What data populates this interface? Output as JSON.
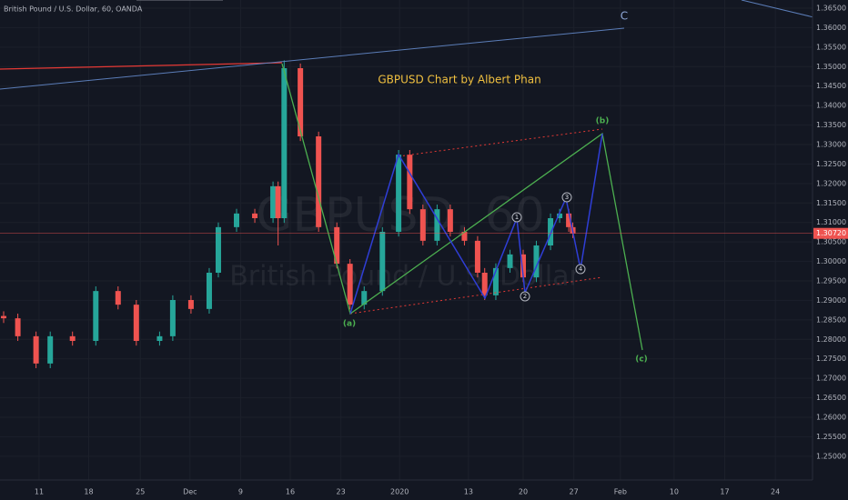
{
  "chart_data": {
    "type": "candlestick",
    "header": "British Pound / U.S. Dollar, 60, OANDA",
    "title": "GBPUSD Chart by Albert Phan",
    "watermark_symbol": "GBPUSD, 60",
    "watermark_name": "British Pound / U.S. Dollar",
    "wave_labels": [
      "(a)",
      "(b)",
      "(c)",
      "1",
      "2",
      "3",
      "4",
      "C"
    ],
    "up_color": "#26a69a",
    "down_color": "#ef5350",
    "grid": true,
    "x": [
      -3.5,
      -2.1,
      -0.3,
      1.1,
      3.3,
      5.6,
      7.8,
      9.6,
      11.9,
      13.2,
      15.0,
      16.8,
      17.7,
      19.5,
      21.3,
      23.1,
      23.6,
      24.2,
      25.8,
      27.6,
      29.4,
      30.7,
      32.1,
      33.9,
      35.5,
      36.6,
      37.9,
      39.3,
      40.6,
      42.0,
      43.3,
      44.0,
      45.1,
      46.5,
      47.8,
      49.1,
      50.5,
      51.4,
      52.3,
      52.7
    ],
    "open": [
      1.286,
      1.2854,
      1.2808,
      1.2738,
      1.2808,
      1.2796,
      1.2924,
      1.2889,
      1.2796,
      1.2808,
      1.2901,
      1.2878,
      1.2971,
      1.3088,
      1.3123,
      1.3111,
      1.3193,
      1.3111,
      1.3496,
      1.3321,
      1.3088,
      1.2994,
      1.2889,
      1.2924,
      1.3076,
      1.3274,
      1.3134,
      1.3053,
      1.3134,
      1.3076,
      1.3053,
      1.2971,
      1.2913,
      1.2983,
      1.3018,
      1.2959,
      1.3041,
      1.3111,
      1.3123,
      1.3088
    ],
    "high": [
      1.2872,
      1.2866,
      1.282,
      1.282,
      1.282,
      1.2936,
      1.2936,
      1.2901,
      1.282,
      1.2913,
      1.2913,
      1.2983,
      1.31,
      1.3135,
      1.3135,
      1.3205,
      1.3205,
      1.3516,
      1.3508,
      1.3333,
      1.31,
      1.3006,
      1.2936,
      1.3088,
      1.3286,
      1.3286,
      1.3146,
      1.3146,
      1.3146,
      1.3088,
      1.3065,
      1.2983,
      1.2995,
      1.303,
      1.303,
      1.3053,
      1.3123,
      1.3135,
      1.3135,
      1.31
    ],
    "low": [
      1.2842,
      1.2796,
      1.2726,
      1.2726,
      1.2784,
      1.2784,
      1.2877,
      1.2784,
      1.2784,
      1.2796,
      1.2866,
      1.2866,
      1.2959,
      1.3076,
      1.3099,
      1.3099,
      1.3041,
      1.3099,
      1.3309,
      1.3076,
      1.2982,
      1.2877,
      1.2877,
      1.2912,
      1.3064,
      1.3122,
      1.3041,
      1.3041,
      1.3064,
      1.3041,
      1.2959,
      1.2901,
      1.2901,
      1.2971,
      1.2947,
      1.2947,
      1.3029,
      1.3099,
      1.3076,
      1.306
    ],
    "close": [
      1.2854,
      1.2808,
      1.2738,
      1.2808,
      1.2796,
      1.2924,
      1.2889,
      1.2796,
      1.2808,
      1.2901,
      1.2878,
      1.2971,
      1.3088,
      1.3123,
      1.3111,
      1.3193,
      1.3111,
      1.3496,
      1.3321,
      1.3088,
      1.2994,
      1.2889,
      1.2924,
      1.3076,
      1.3274,
      1.3134,
      1.3053,
      1.3134,
      1.3076,
      1.3053,
      1.2971,
      1.2913,
      1.2983,
      1.3018,
      1.2959,
      1.3041,
      1.3111,
      1.3123,
      1.3088,
      1.3072
    ],
    "last_price": {
      "value": 1.3072,
      "label": "1.30720"
    },
    "xlim": [
      -3.86,
      76.37
    ],
    "ylim": [
      1.2439,
      1.3671
    ],
    "xticks": [
      {
        "value": 0,
        "label": "11"
      },
      {
        "value": 4.9,
        "label": "18"
      },
      {
        "value": 10.0,
        "label": "25"
      },
      {
        "value": 14.9,
        "label": "Dec"
      },
      {
        "value": 19.9,
        "label": "9"
      },
      {
        "value": 24.8,
        "label": "16"
      },
      {
        "value": 29.8,
        "label": "23"
      },
      {
        "value": 35.6,
        "label": "2020"
      },
      {
        "value": 42.4,
        "label": "13"
      },
      {
        "value": 47.8,
        "label": "20"
      },
      {
        "value": 52.8,
        "label": "27"
      },
      {
        "value": 57.4,
        "label": "Feb"
      },
      {
        "value": 62.7,
        "label": "10"
      },
      {
        "value": 67.7,
        "label": "17"
      },
      {
        "value": 72.7,
        "label": "24"
      }
    ],
    "yticks": [
      {
        "value": 1.25,
        "label": "1.25000"
      },
      {
        "value": 1.255,
        "label": "1.25500"
      },
      {
        "value": 1.26,
        "label": "1.26000"
      },
      {
        "value": 1.265,
        "label": "1.26500"
      },
      {
        "value": 1.27,
        "label": "1.27000"
      },
      {
        "value": 1.275,
        "label": "1.27500"
      },
      {
        "value": 1.28,
        "label": "1.28000"
      },
      {
        "value": 1.285,
        "label": "1.28500"
      },
      {
        "value": 1.29,
        "label": "1.29000"
      },
      {
        "value": 1.295,
        "label": "1.29500"
      },
      {
        "value": 1.3,
        "label": "1.30000"
      },
      {
        "value": 1.305,
        "label": "1.30500"
      },
      {
        "value": 1.31,
        "label": "1.31000"
      },
      {
        "value": 1.315,
        "label": "1.31500"
      },
      {
        "value": 1.32,
        "label": "1.32000"
      },
      {
        "value": 1.325,
        "label": "1.32500"
      },
      {
        "value": 1.33,
        "label": "1.33000"
      },
      {
        "value": 1.335,
        "label": "1.33500"
      },
      {
        "value": 1.34,
        "label": "1.34000"
      },
      {
        "value": 1.345,
        "label": "1.34500"
      },
      {
        "value": 1.35,
        "label": "1.35000"
      },
      {
        "value": 1.355,
        "label": "1.35500"
      },
      {
        "value": 1.36,
        "label": "1.36000"
      },
      {
        "value": 1.365,
        "label": "1.36500"
      }
    ]
  }
}
